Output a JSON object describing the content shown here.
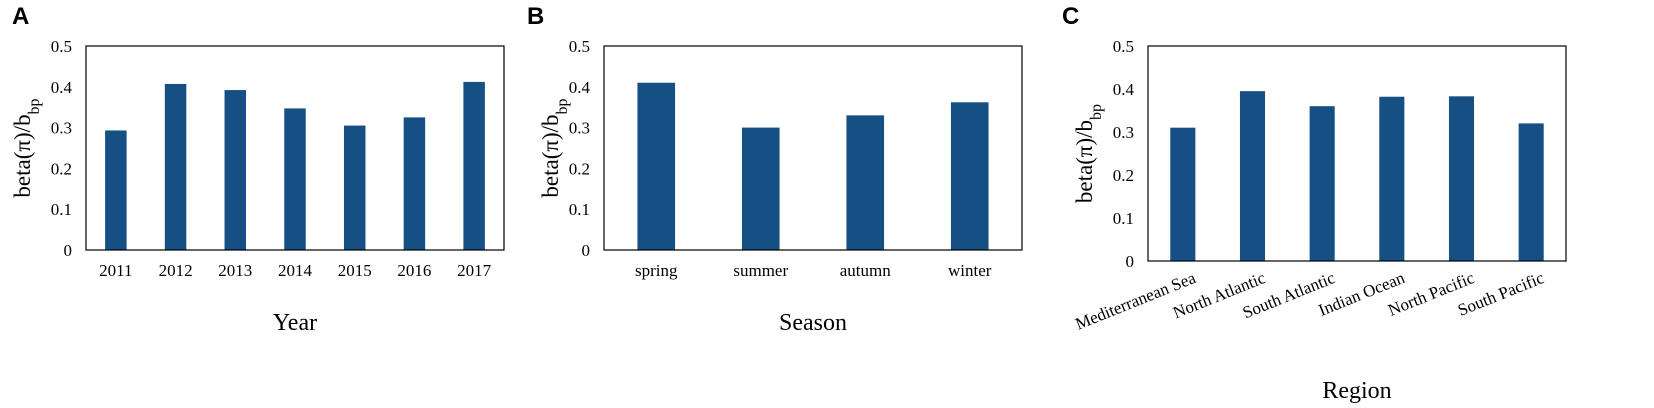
{
  "chart_data": [
    {
      "panel_label": "A",
      "type": "bar",
      "categories": [
        "2011",
        "2012",
        "2013",
        "2014",
        "2015",
        "2016",
        "2017"
      ],
      "values": [
        0.293,
        0.407,
        0.392,
        0.347,
        0.305,
        0.325,
        0.412
      ],
      "xlabel": "Year",
      "ylabel": {
        "main": "beta(π)/b",
        "sub": "bp"
      },
      "ylim": [
        0,
        0.5
      ],
      "yticks": [
        "0",
        "0.1",
        "0.2",
        "0.3",
        "0.4",
        "0.5"
      ],
      "bar_color": "#154f84",
      "grid": false,
      "rotated_xticks": false
    },
    {
      "panel_label": "B",
      "type": "bar",
      "categories": [
        "spring",
        "summer",
        "autumn",
        "winter"
      ],
      "values": [
        0.41,
        0.3,
        0.33,
        0.362
      ],
      "xlabel": "Season",
      "ylabel": {
        "main": "beta(π)/b",
        "sub": "bp"
      },
      "ylim": [
        0,
        0.5
      ],
      "yticks": [
        "0",
        "0.1",
        "0.2",
        "0.3",
        "0.4",
        "0.5"
      ],
      "bar_color": "#154f84",
      "grid": false,
      "rotated_xticks": false
    },
    {
      "panel_label": "C",
      "type": "bar",
      "categories": [
        "Mediterranean Sea",
        "North Atlantic",
        "South Atlantic",
        "Indian Ocean",
        "North Pacific",
        "South Pacific"
      ],
      "values": [
        0.31,
        0.395,
        0.36,
        0.382,
        0.383,
        0.32
      ],
      "xlabel": "Region",
      "ylabel": {
        "main": "beta(π)/b",
        "sub": "bp"
      },
      "ylim": [
        0,
        0.5
      ],
      "yticks": [
        "0",
        "0.1",
        "0.2",
        "0.3",
        "0.4",
        "0.5"
      ],
      "bar_color": "#154f84",
      "grid": false,
      "rotated_xticks": true
    }
  ]
}
